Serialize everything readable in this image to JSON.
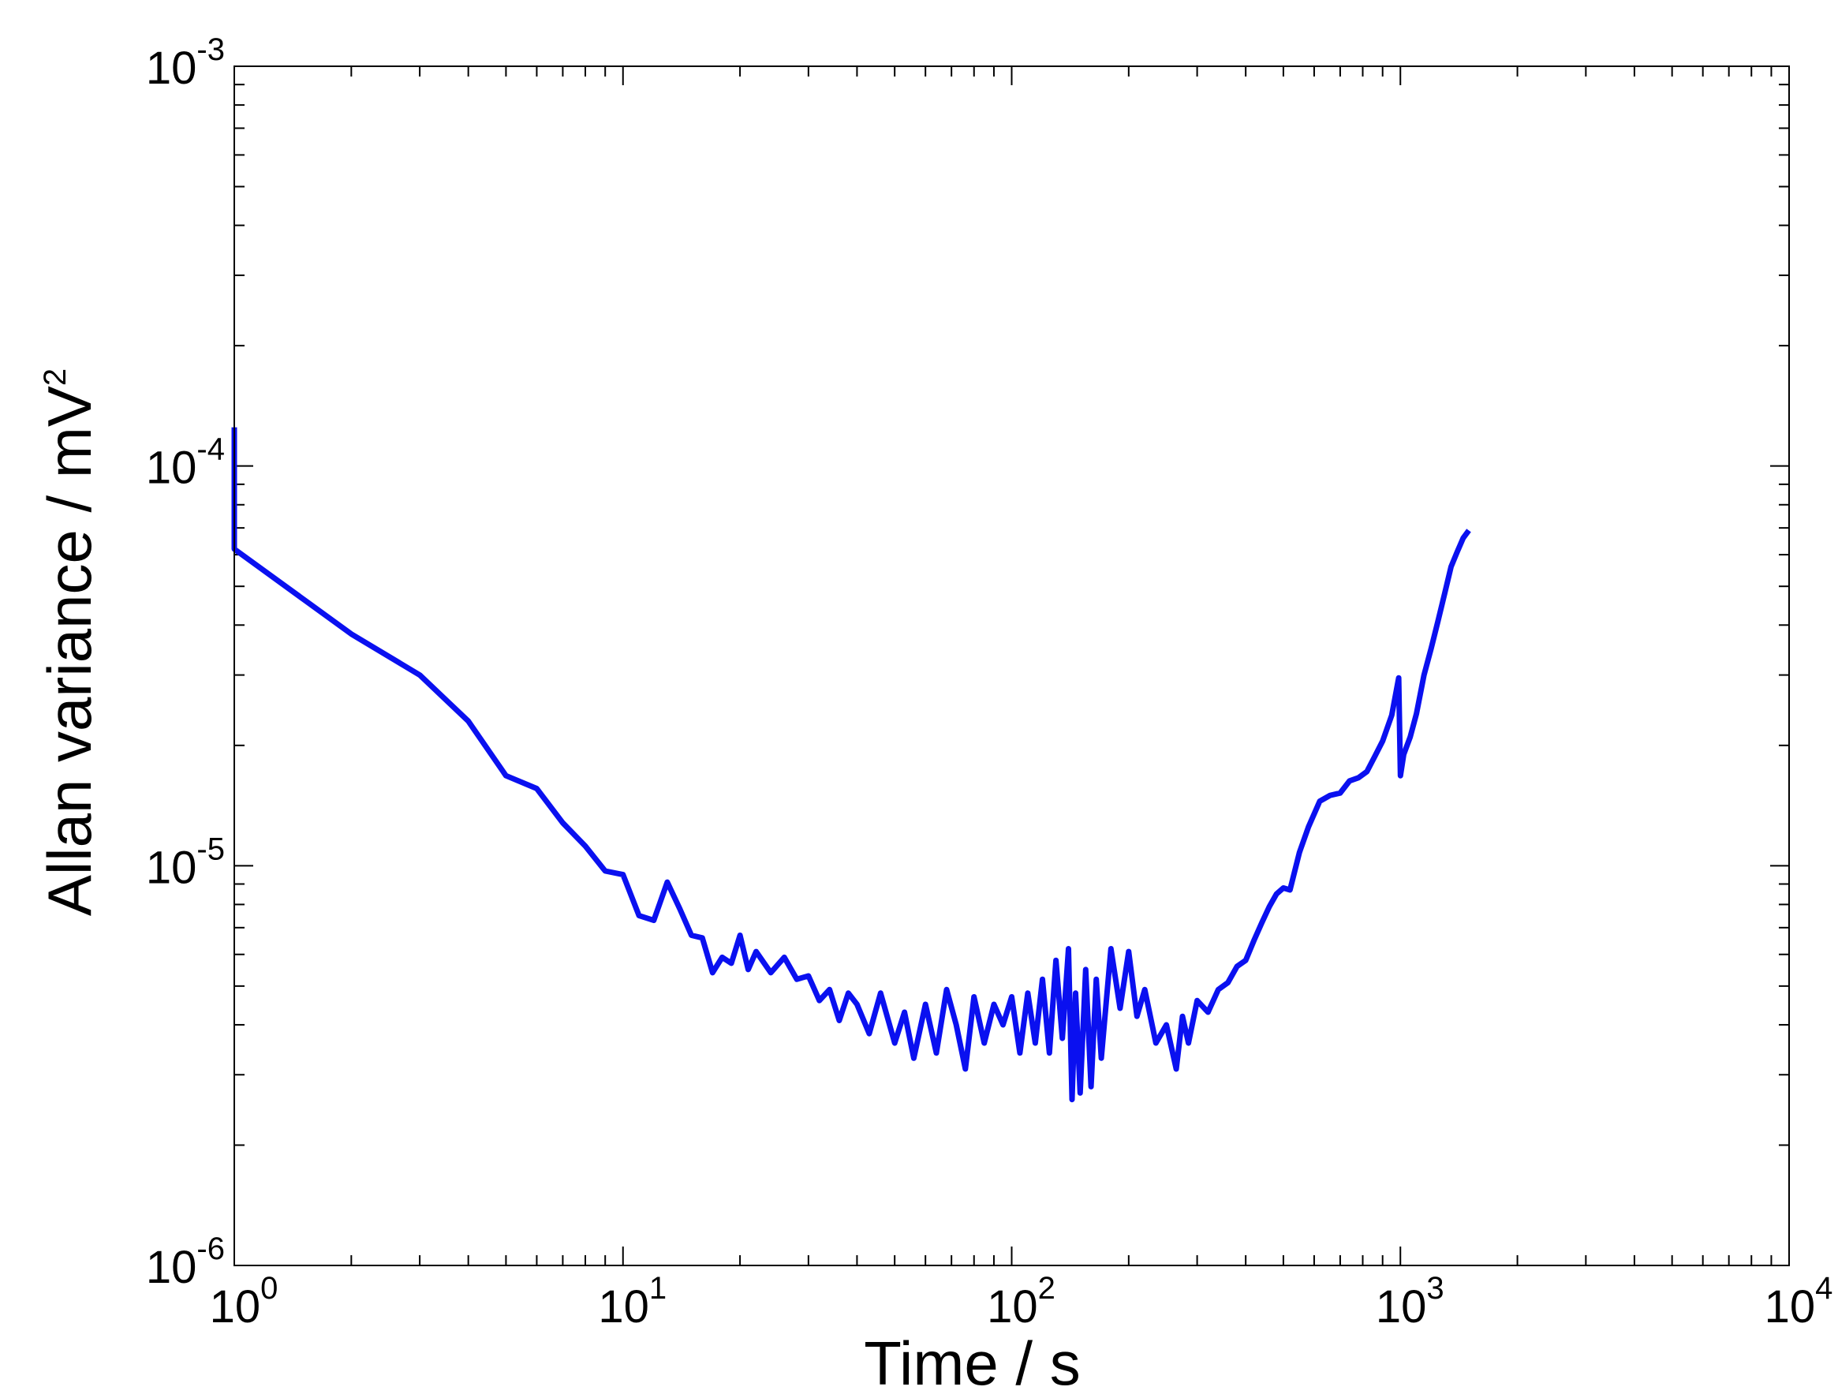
{
  "chart_data": {
    "type": "line",
    "xlabel": "Time / s",
    "ylabel": "Allan variance / mV",
    "ylabel_superscript": "2",
    "xscale": "log",
    "yscale": "log",
    "xlim": [
      1,
      10000
    ],
    "ylim": [
      1e-06,
      0.001
    ],
    "grid": false,
    "legend": "none",
    "xticks": [
      {
        "value": 1,
        "base": "10",
        "exp": "0"
      },
      {
        "value": 10,
        "base": "10",
        "exp": "1"
      },
      {
        "value": 100,
        "base": "10",
        "exp": "2"
      },
      {
        "value": 1000,
        "base": "10",
        "exp": "3"
      },
      {
        "value": 10000,
        "base": "10",
        "exp": "4"
      }
    ],
    "yticks": [
      {
        "value": 1e-06,
        "base": "10",
        "exp": "-6"
      },
      {
        "value": 1e-05,
        "base": "10",
        "exp": "-5"
      },
      {
        "value": 0.0001,
        "base": "10",
        "exp": "-4"
      },
      {
        "value": 0.001,
        "base": "10",
        "exp": "-3"
      }
    ],
    "series": [
      {
        "color": "#0a10f0",
        "x": [
          1,
          1,
          2,
          3,
          4,
          5,
          6,
          7,
          8,
          9,
          10,
          11,
          12,
          13,
          14,
          15,
          16,
          17,
          18,
          19,
          20,
          21,
          22,
          24,
          26,
          28,
          30,
          32,
          34,
          36,
          38,
          40,
          43,
          46,
          50,
          53,
          56,
          60,
          64,
          68,
          72,
          76,
          80,
          85,
          90,
          95,
          100,
          105,
          110,
          115,
          120,
          125,
          130,
          135,
          140,
          143,
          146,
          150,
          155,
          160,
          165,
          170,
          180,
          190,
          200,
          210,
          220,
          235,
          250,
          265,
          275,
          285,
          300,
          320,
          340,
          360,
          380,
          400,
          420,
          440,
          460,
          480,
          500,
          520,
          550,
          580,
          620,
          660,
          700,
          740,
          780,
          820,
          860,
          900,
          950,
          990,
          1000,
          1020,
          1060,
          1100,
          1150,
          1200,
          1250,
          1300,
          1350,
          1400,
          1450,
          1500
        ],
        "y": [
          0.000125,
          6.2e-05,
          3.8e-05,
          3e-05,
          2.3e-05,
          1.68e-05,
          1.56e-05,
          1.28e-05,
          1.12e-05,
          9.7e-06,
          9.5e-06,
          7.5e-06,
          7.3e-06,
          9.1e-06,
          7.8e-06,
          6.7e-06,
          6.6e-06,
          5.4e-06,
          5.9e-06,
          5.7e-06,
          6.7e-06,
          5.5e-06,
          6.1e-06,
          5.4e-06,
          5.9e-06,
          5.2e-06,
          5.3e-06,
          4.6e-06,
          4.9e-06,
          4.1e-06,
          4.8e-06,
          4.5e-06,
          3.8e-06,
          4.8e-06,
          3.6e-06,
          4.3e-06,
          3.3e-06,
          4.5e-06,
          3.4e-06,
          4.9e-06,
          4e-06,
          3.1e-06,
          4.7e-06,
          3.6e-06,
          4.5e-06,
          4e-06,
          4.7e-06,
          3.4e-06,
          4.8e-06,
          3.6e-06,
          5.2e-06,
          3.4e-06,
          5.8e-06,
          3.7e-06,
          6.2e-06,
          2.6e-06,
          4.8e-06,
          2.7e-06,
          5.5e-06,
          2.8e-06,
          5.2e-06,
          3.3e-06,
          6.2e-06,
          4.4e-06,
          6.1e-06,
          4.2e-06,
          4.9e-06,
          3.6e-06,
          4e-06,
          3.1e-06,
          4.2e-06,
          3.6e-06,
          4.6e-06,
          4.3e-06,
          4.9e-06,
          5.1e-06,
          5.6e-06,
          5.8e-06,
          6.5e-06,
          7.2e-06,
          7.9e-06,
          8.5e-06,
          8.8e-06,
          8.7e-06,
          1.08e-05,
          1.25e-05,
          1.45e-05,
          1.5e-05,
          1.52e-05,
          1.63e-05,
          1.66e-05,
          1.72e-05,
          1.88e-05,
          2.05e-05,
          2.38e-05,
          2.95e-05,
          1.68e-05,
          1.9e-05,
          2.1e-05,
          2.4e-05,
          3e-05,
          3.5e-05,
          4.1e-05,
          4.8e-05,
          5.6e-05,
          6.1e-05,
          6.6e-05,
          6.9e-05
        ]
      }
    ]
  }
}
